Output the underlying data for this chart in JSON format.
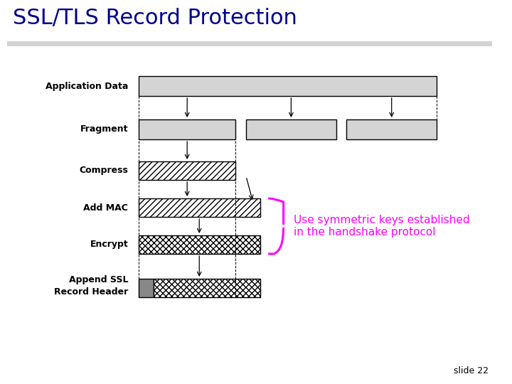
{
  "title": "SSL/TLS Record Protection",
  "title_color": "#00008B",
  "title_fontsize": 22,
  "slide_number": "slide 22",
  "bg_color": "#ffffff",
  "annotation_text": "Use symmetric keys established\nin the handshake protocol",
  "annotation_color": "#FF00FF",
  "annotation_fontsize": 11,
  "label_fontsize": 9,
  "label_fontweight": "bold",
  "gray_fill": "#d4d4d4",
  "dark_gray_fill": "#888888",
  "white_fill": "#ffffff"
}
